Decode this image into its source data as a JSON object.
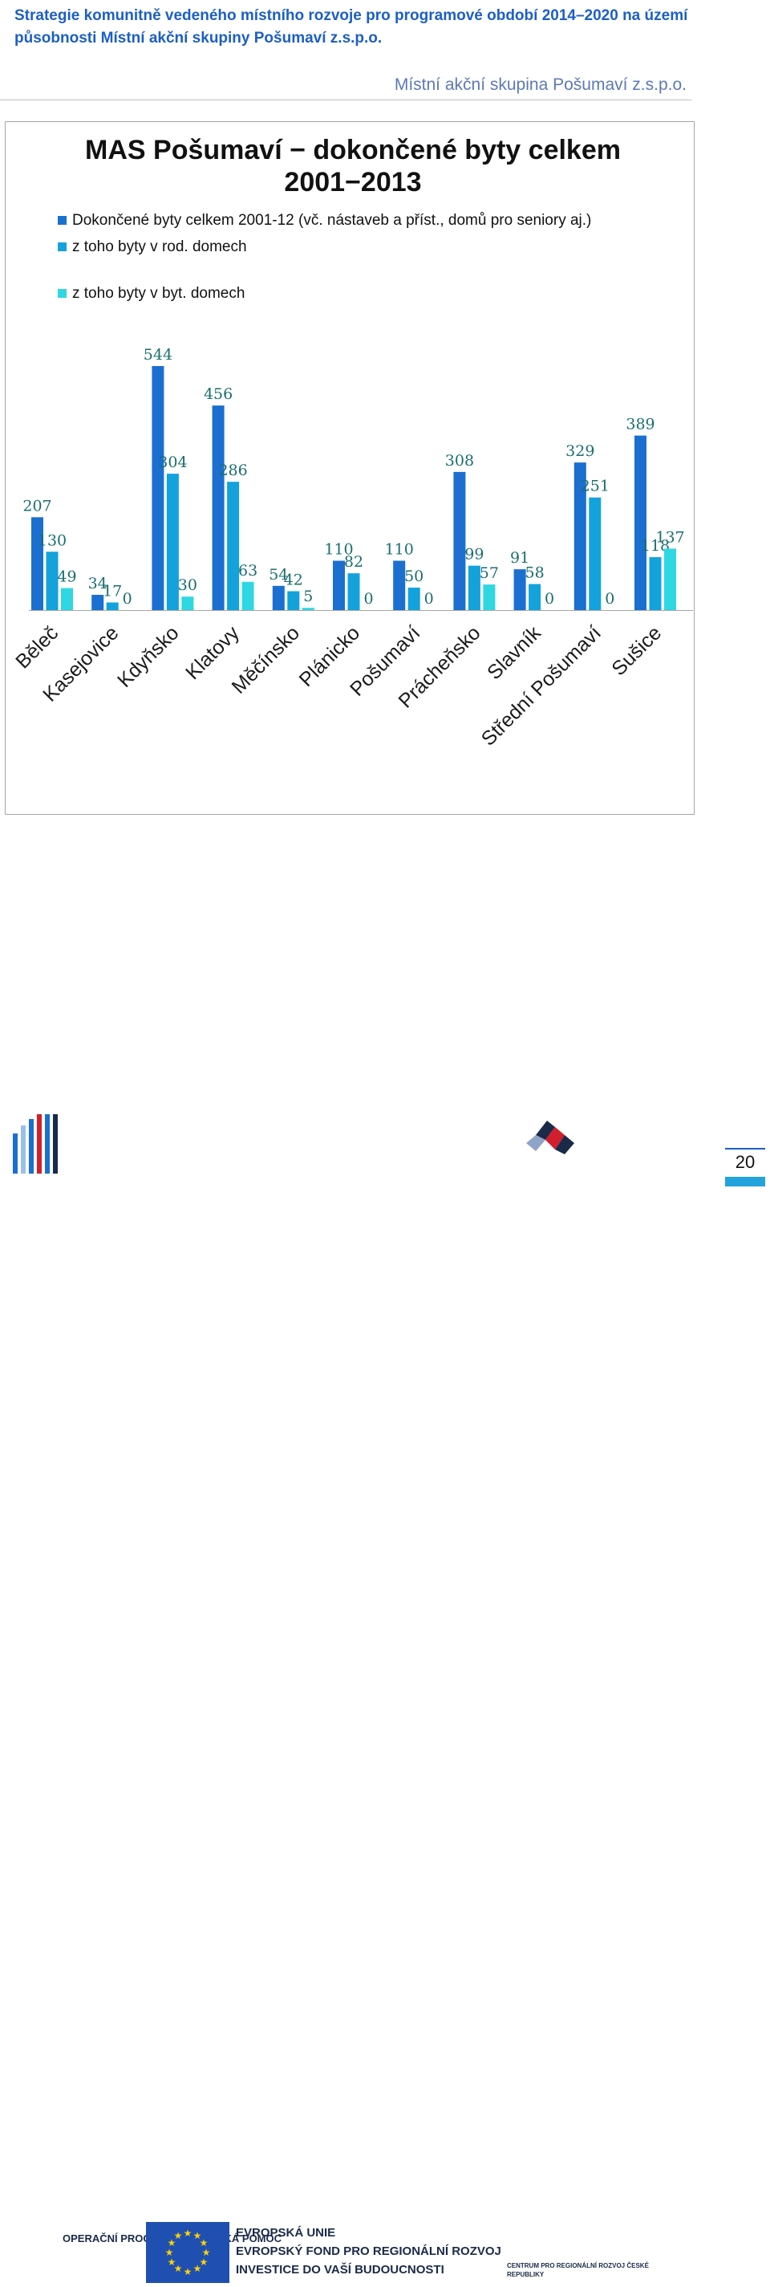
{
  "document": {
    "title": "Strategie komunitně vedeného místního rozvoje pro programové období 2014–2020 na území působnosti Místní akční skupiny Pošumaví z.s.p.o.",
    "organization": "Místní akční skupina Pošumaví z.s.p.o.",
    "page_number": "20"
  },
  "colors": {
    "title_blue": "#1c5fc4",
    "series_1": "#1b6fd0",
    "series_2": "#13a2dc",
    "series_3": "#2fd7e2",
    "label": "#1a6e6e"
  },
  "footer": {
    "op_logo_text": "OPERAČNÍ PROGRAM TECHNICKÁ POMOC",
    "eu_lines": [
      "EVROPSKÁ UNIE",
      "EVROPSKÝ FOND PRO REGIONÁLNÍ ROZVOJ",
      "INVESTICE DO VAŠÍ BUDOUCNOSTI"
    ],
    "mmr_text": "CENTRUM PRO REGIONÁLNÍ ROZVOJ ČESKÉ REPUBLIKY"
  },
  "chart_data": {
    "type": "bar",
    "title": "MAS Pošumaví − dokončené byty celkem 2001−2013",
    "categories": [
      "Běleč",
      "Kasejovice",
      "Kdyňsko",
      "Klatovy",
      "Měčínsko",
      "Plánicko",
      "Pošumaví",
      "Prácheňsko",
      "Slavník",
      "Střední Pošumaví",
      "Sušice"
    ],
    "series": [
      {
        "name": "Dokončené byty celkem 2001-12 (vč. nástaveb a příst., domů pro seniory aj.)",
        "values": [
          207,
          34,
          544,
          456,
          54,
          110,
          110,
          308,
          91,
          329,
          389
        ]
      },
      {
        "name": "z toho byty v rod. domech",
        "values": [
          130,
          17,
          304,
          286,
          42,
          82,
          50,
          99,
          58,
          251,
          118
        ]
      },
      {
        "name": "z toho byty v byt. domech",
        "values": [
          49,
          0,
          30,
          63,
          5,
          0,
          0,
          57,
          0,
          0,
          137
        ]
      }
    ],
    "ylim": [
      0,
      560
    ],
    "grid": false,
    "legend_position": "top-left"
  }
}
